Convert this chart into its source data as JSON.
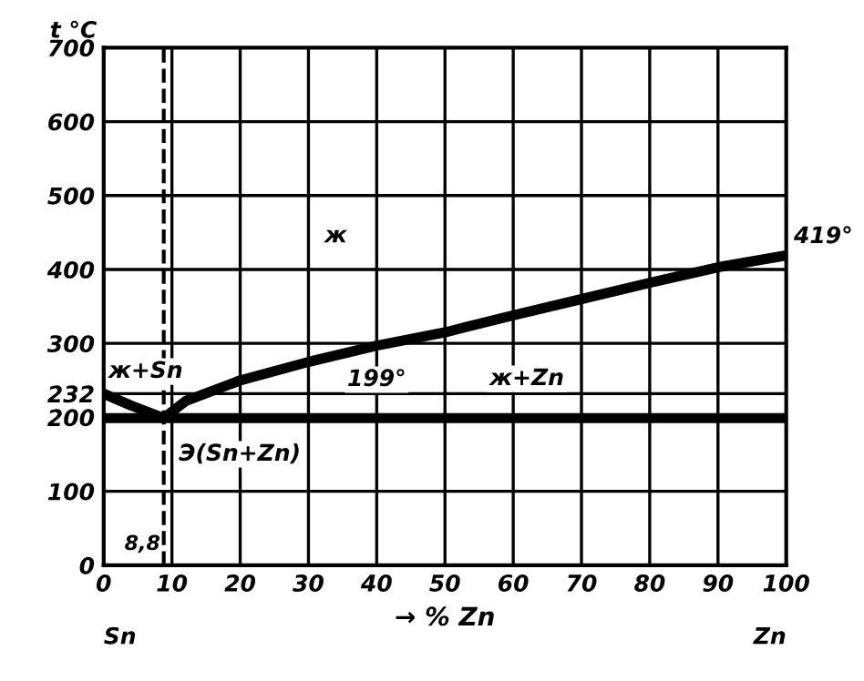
{
  "chart_data": {
    "type": "line",
    "xlabel": "→ % Zn",
    "ylabel": "t °C",
    "x": [
      0,
      4,
      8.8,
      12,
      20,
      30,
      40,
      50,
      60,
      70,
      80,
      90,
      100
    ],
    "series": [
      {
        "color": "#000000",
        "values": [
          232,
          216,
          199,
          222,
          250,
          275,
          297,
          315,
          338,
          360,
          382,
          403,
          419
        ]
      }
    ],
    "xlim": [
      0,
      100
    ],
    "ylim": [
      0,
      700
    ],
    "xticks": [
      0,
      10,
      20,
      30,
      40,
      50,
      60,
      70,
      80,
      90,
      100
    ],
    "yticks": [
      0,
      100,
      200,
      232,
      300,
      400,
      500,
      600,
      700
    ],
    "ref_lines": [
      {
        "axis": "y",
        "value": 199,
        "label": "199°",
        "color": "#000000",
        "line_style": "solid"
      },
      {
        "axis": "x",
        "value": 8.8,
        "label": "8,8",
        "color": "#000000",
        "line_style": "dashed"
      }
    ],
    "annotations": [
      "ж",
      "ж+Sn",
      "ж+Zn",
      "Э(Sn+Zn)",
      {
        "text": "419°",
        "x": 100,
        "y": 419
      },
      "Sn",
      "Zn"
    ],
    "grid": true,
    "marker": "none",
    "line_style": "solid"
  }
}
